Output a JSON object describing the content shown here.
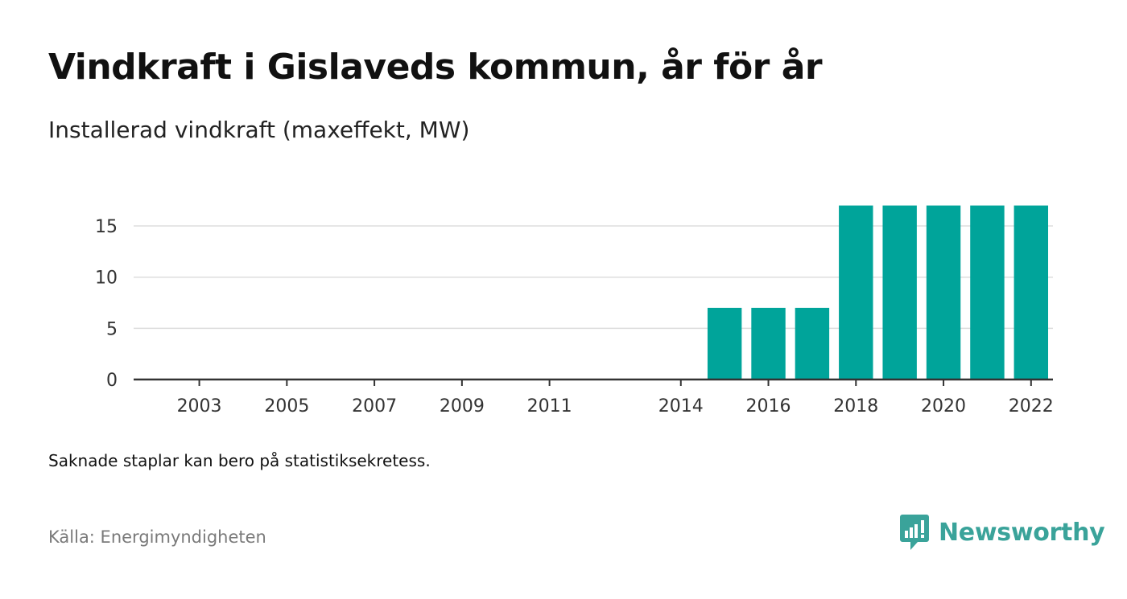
{
  "chart_data": {
    "type": "bar",
    "title": "Vindkraft i Gislaveds kommun, år för år",
    "subtitle": "Installerad vindkraft (maxeffekt, MW)",
    "xlabel": "",
    "ylabel": "",
    "categories": [
      "2002",
      "2003",
      "2004",
      "2005",
      "2006",
      "2007",
      "2008",
      "2009",
      "2010",
      "2011",
      "2012",
      "2013",
      "2014",
      "2015",
      "2016",
      "2017",
      "2018",
      "2019",
      "2020",
      "2021",
      "2022"
    ],
    "values": [
      0,
      0,
      0,
      0,
      0,
      0,
      0,
      0,
      0,
      0,
      null,
      null,
      0,
      7,
      7,
      7,
      17,
      17,
      17,
      17,
      17
    ],
    "x_tick_labels": [
      "2003",
      "2005",
      "2007",
      "2009",
      "2011",
      "2014",
      "2016",
      "2018",
      "2020",
      "2022"
    ],
    "y_ticks": [
      "0",
      "5",
      "10",
      "15"
    ],
    "ylim": [
      0,
      17
    ],
    "grid": true,
    "bar_color": "#00a49a"
  },
  "note": "Saknade staplar kan bero på statistiksekretess.",
  "source": "Källa: Energimyndigheten",
  "brand": {
    "name": "Newsworthy",
    "icon": "newsworthy-logo-icon",
    "color": "#3aa39a"
  }
}
